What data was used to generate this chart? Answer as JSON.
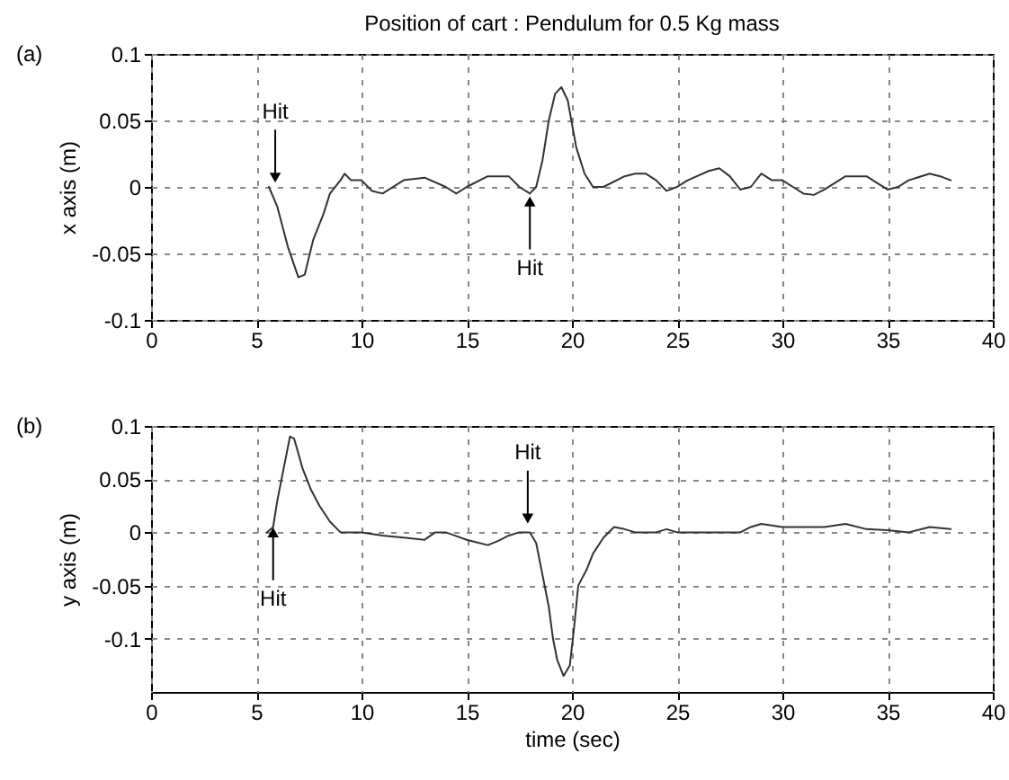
{
  "chart_data": [
    {
      "type": "line",
      "title": "Position of cart : Pendulum for 0.5 Kg mass",
      "ylabel": "x axis (m)",
      "annotations": [
        "(a)",
        {
          "text": "Hit",
          "x": 5.9,
          "y": 0.003
        },
        {
          "text": "Hit",
          "x": 18,
          "y": -0.007
        }
      ],
      "x": [
        5.6,
        6,
        6.5,
        7,
        7.3,
        7.7,
        8.2,
        8.5,
        9,
        9.2,
        9.5,
        10,
        10.5,
        11,
        12,
        13,
        14,
        14.5,
        15,
        16,
        17,
        17.5,
        18,
        18.3,
        18.6,
        18.9,
        19.2,
        19.5,
        19.8,
        20.2,
        20.6,
        21,
        21.5,
        22.5,
        23,
        23.5,
        24,
        24.5,
        25,
        25.5,
        26.5,
        27,
        27.5,
        28,
        28.5,
        29,
        29.5,
        30,
        30.5,
        31,
        31.5,
        32,
        33,
        34,
        34.5,
        35,
        35.5,
        36,
        37,
        37.5,
        38
      ],
      "series": [
        {
          "color": "#333333",
          "values": [
            0,
            -0.015,
            -0.045,
            -0.068,
            -0.066,
            -0.04,
            -0.02,
            -0.005,
            0.005,
            0.01,
            0.005,
            0.005,
            -0.003,
            -0.005,
            0.005,
            0.007,
            0,
            -0.005,
            0,
            0.008,
            0.008,
            0,
            -0.005,
            0,
            0.02,
            0.05,
            0.07,
            0.075,
            0.065,
            0.03,
            0.01,
            0,
            0,
            0.008,
            0.01,
            0.01,
            0.005,
            -0.003,
            0,
            0.005,
            0.012,
            0.014,
            0.008,
            -0.002,
            0,
            0.01,
            0.005,
            0.005,
            0,
            -0.005,
            -0.006,
            -0.002,
            0.008,
            0.008,
            0.003,
            -0.002,
            0,
            0.005,
            0.01,
            0.008,
            0.005
          ]
        }
      ],
      "xlim": [
        0,
        40
      ],
      "xticks": [
        0,
        5,
        10,
        15,
        20,
        25,
        30,
        35,
        40
      ],
      "ylim": [
        -0.1,
        0.1
      ],
      "yticks": [
        -0.1,
        -0.05,
        0,
        0.05,
        0.1
      ],
      "grid": true
    },
    {
      "type": "line",
      "xlabel": "time (sec)",
      "ylabel": "y axis (m)",
      "annotations": [
        "(b)",
        {
          "text": "Hit",
          "x": 5.8,
          "y": 0.005
        },
        {
          "text": "Hit",
          "x": 17.9,
          "y": 0.008
        }
      ],
      "x": [
        5.5,
        5.8,
        6,
        6.3,
        6.6,
        6.8,
        7.2,
        7.6,
        8,
        8.5,
        9,
        10,
        11,
        12,
        13,
        13.5,
        14,
        15,
        16,
        16.5,
        17,
        17.5,
        18,
        18.3,
        18.6,
        18.9,
        19.1,
        19.3,
        19.6,
        19.9,
        20.1,
        20.3,
        20.7,
        21,
        21.5,
        22,
        22.5,
        23,
        24,
        24.5,
        25,
        28,
        28.5,
        29,
        30,
        31,
        32,
        33,
        34,
        35,
        36,
        37,
        38
      ],
      "series": [
        {
          "color": "#333333",
          "values": [
            0,
            0.005,
            0.03,
            0.06,
            0.09,
            0.088,
            0.06,
            0.04,
            0.025,
            0.01,
            0,
            0,
            -0.003,
            -0.005,
            -0.007,
            0,
            0,
            -0.007,
            -0.012,
            -0.008,
            -0.003,
            0,
            0,
            -0.01,
            -0.04,
            -0.07,
            -0.1,
            -0.12,
            -0.135,
            -0.125,
            -0.09,
            -0.05,
            -0.035,
            -0.02,
            -0.005,
            0.005,
            0.003,
            0,
            0,
            0.003,
            0,
            0,
            0.005,
            0.008,
            0.005,
            0.005,
            0.005,
            0.008,
            0.003,
            0.002,
            0,
            0.005,
            0.003
          ]
        }
      ],
      "xlim": [
        0,
        40
      ],
      "xticks": [
        0,
        5,
        10,
        15,
        20,
        25,
        30,
        35,
        40
      ],
      "ylim": [
        -0.15,
        0.1
      ],
      "yticks": [
        -0.1,
        -0.05,
        0,
        0.05,
        0.1
      ],
      "grid": true
    }
  ]
}
